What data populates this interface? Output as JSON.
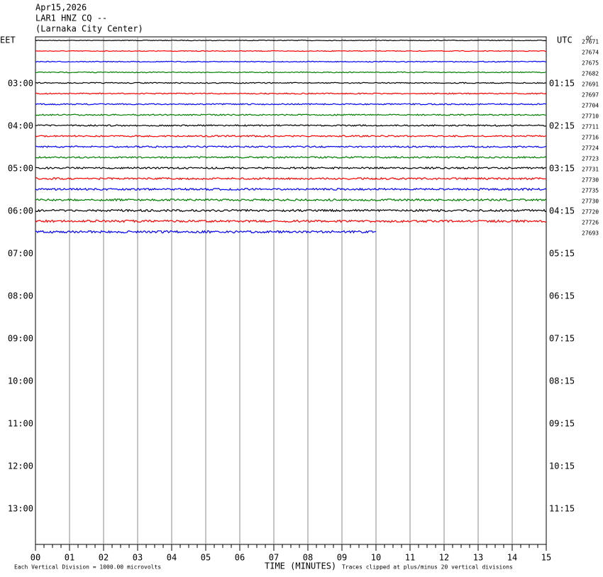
{
  "header": {
    "lines": [
      "Apr15,2026",
      "LAR1 HNZ CQ --",
      "(Larnaka City Center)"
    ]
  },
  "chart_data": {
    "type": "helicorder",
    "left_zone": "EET",
    "right_zone": "UTC",
    "corner_label": "OC",
    "left_times": [
      "03:00",
      "04:00",
      "05:00",
      "06:00",
      "07:00",
      "08:00",
      "09:00",
      "10:00",
      "11:00",
      "12:00",
      "13:00"
    ],
    "right_times": [
      "01:15",
      "02:15",
      "03:15",
      "04:15",
      "05:15",
      "06:15",
      "07:15",
      "08:15",
      "09:15",
      "10:15",
      "11:15"
    ],
    "xlim": [
      0,
      15
    ],
    "xticks": [
      {
        "value": 0,
        "label": "00"
      },
      {
        "value": 1,
        "label": "01"
      },
      {
        "value": 2,
        "label": "02"
      },
      {
        "value": 3,
        "label": "03"
      },
      {
        "value": 4,
        "label": "04"
      },
      {
        "value": 5,
        "label": "05"
      },
      {
        "value": 6,
        "label": "06"
      },
      {
        "value": 7,
        "label": "07"
      },
      {
        "value": 8,
        "label": "08"
      },
      {
        "value": 9,
        "label": "09"
      },
      10,
      11,
      12,
      13,
      14,
      15
    ],
    "xlabel": "TIME (MINUTES)",
    "trace_colors": [
      "#000000",
      "#ff0000",
      "#0000ff",
      "#008000"
    ],
    "traces": [
      {
        "label": "27671"
      },
      {
        "label": "27674"
      },
      {
        "label": "27675"
      },
      {
        "label": "27682"
      },
      {
        "label": "27691"
      },
      {
        "label": "27697"
      },
      {
        "label": "27704"
      },
      {
        "label": "27710"
      },
      {
        "label": "27711"
      },
      {
        "label": "27716"
      },
      {
        "label": "27724"
      },
      {
        "label": "27723"
      },
      {
        "label": "27731"
      },
      {
        "label": "27730"
      },
      {
        "label": "27735"
      },
      {
        "label": "27730"
      },
      {
        "label": "27720"
      },
      {
        "label": "27726"
      },
      {
        "label": "27693",
        "end": 10
      }
    ],
    "footer_left": "Each Vertical Division = 1000.00 microvolts",
    "footer_right": "Traces clipped at plus/minus 20 vertical divisions"
  }
}
